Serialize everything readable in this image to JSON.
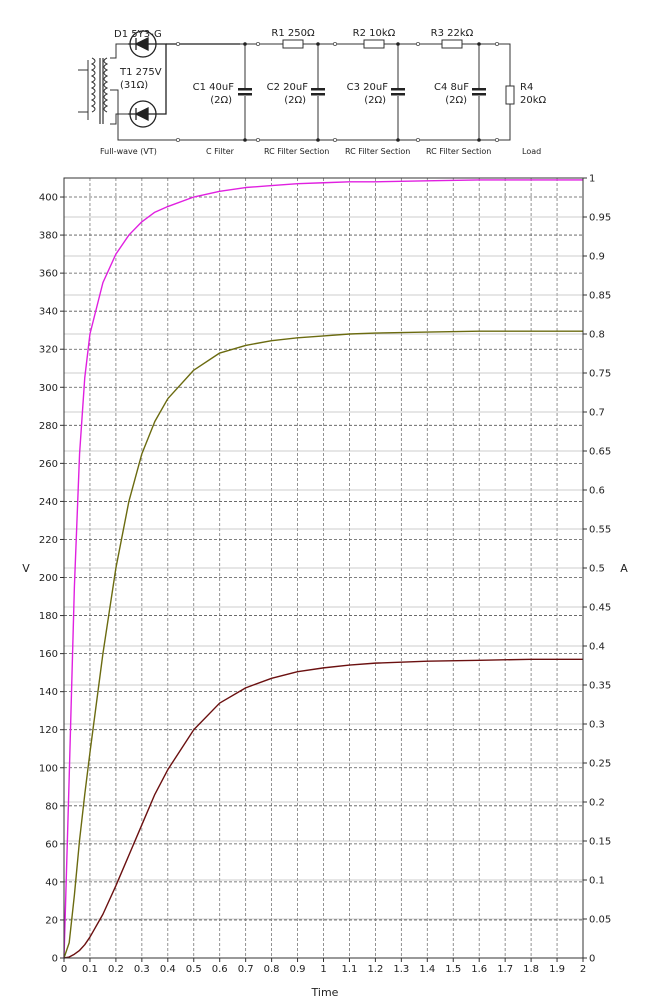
{
  "schematic": {
    "components": {
      "d1": "D1 5Y3-G",
      "t1_name": "T1 275V",
      "t1_res": "(31Ω)",
      "c1_value": "C1 40uF",
      "c1_res": "(2Ω)",
      "r1": "R1 250Ω",
      "c2_value": "C2 20uF",
      "c2_res": "(2Ω)",
      "r2": "R2 10kΩ",
      "c3_value": "C3 20uF",
      "c3_res": "(2Ω)",
      "r3": "R3 22kΩ",
      "c4_value": "C4 8uF",
      "c4_res": "(2Ω)",
      "r4_name": "R4",
      "r4_value": "20kΩ"
    },
    "sections": [
      "Full-wave (VT)",
      "C Filter",
      "RC Filter Section",
      "RC Filter Section",
      "RC Filter Section",
      "Load"
    ]
  },
  "chart_data": {
    "type": "line",
    "xlabel": "Time",
    "ylabel": "V",
    "y2label": "A",
    "xlim": [
      0,
      2
    ],
    "ylim": [
      0,
      410
    ],
    "y2lim": [
      0,
      1
    ],
    "grid": true,
    "x_ticks": [
      "0",
      "0.1",
      "0.2",
      "0.3",
      "0.4",
      "0.5",
      "0.6",
      "0.7",
      "0.8",
      "0.9",
      "1",
      "1.1",
      "1.2",
      "1.3",
      "1.4",
      "1.5",
      "1.6",
      "1.7",
      "1.8",
      "1.9",
      "2"
    ],
    "y_ticks": [
      "0",
      "20",
      "40",
      "60",
      "80",
      "100",
      "120",
      "140",
      "160",
      "180",
      "200",
      "220",
      "240",
      "260",
      "280",
      "300",
      "320",
      "340",
      "360",
      "380",
      "400"
    ],
    "y2_ticks": [
      "0",
      "0.05",
      "0.1",
      "0.15",
      "0.2",
      "0.25",
      "0.3",
      "0.35",
      "0.4",
      "0.45",
      "0.5",
      "0.55",
      "0.6",
      "0.65",
      "0.7",
      "0.75",
      "0.8",
      "0.85",
      "0.9",
      "0.95",
      "1"
    ],
    "x": [
      0,
      0.02,
      0.04,
      0.06,
      0.08,
      0.1,
      0.15,
      0.2,
      0.25,
      0.3,
      0.35,
      0.4,
      0.5,
      0.6,
      0.7,
      0.8,
      0.9,
      1.0,
      1.1,
      1.2,
      1.4,
      1.6,
      1.8,
      2.0
    ],
    "series": [
      {
        "color": "#e020e0",
        "values": [
          0,
          95,
          195,
          265,
          305,
          328,
          355,
          370,
          380,
          387,
          392,
          395,
          400,
          403,
          405,
          406,
          407,
          407.5,
          408,
          408,
          408.5,
          409,
          409,
          409
        ]
      },
      {
        "color": "#6b6b10",
        "values": [
          0,
          8,
          33,
          62,
          86,
          108,
          160,
          205,
          240,
          265,
          282,
          294,
          309,
          318,
          322,
          324.5,
          326,
          327,
          328,
          328.5,
          329,
          329.5,
          329.5,
          329.5
        ]
      },
      {
        "color": "#6b1010",
        "values": [
          0,
          0.5,
          2,
          4,
          7,
          11,
          23,
          38,
          54,
          70,
          86,
          99,
          120,
          134,
          142,
          147,
          150.5,
          152.5,
          154,
          155,
          156,
          156.5,
          157,
          157
        ]
      }
    ]
  }
}
